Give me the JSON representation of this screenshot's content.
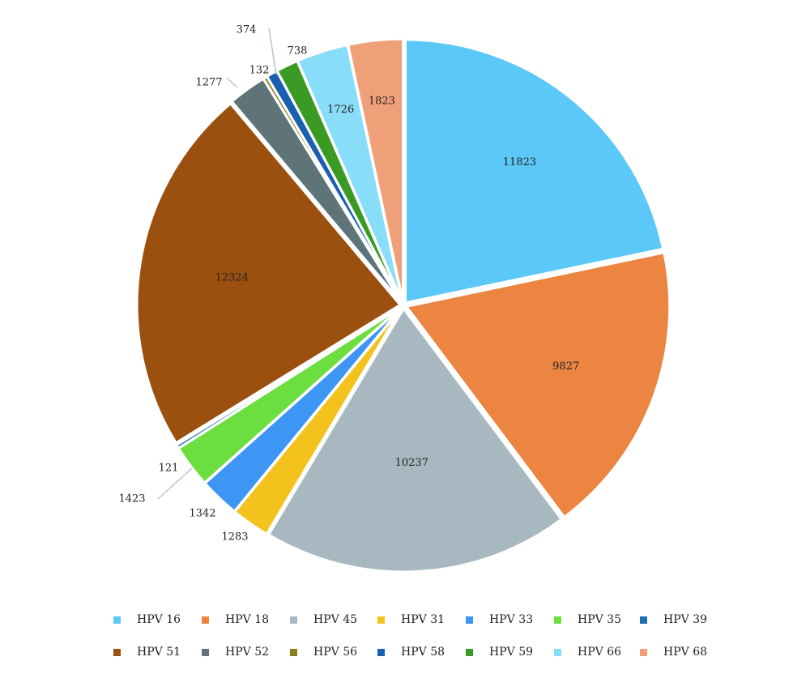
{
  "chart_data": {
    "type": "pie",
    "title": "",
    "slices": [
      {
        "name": "HPV 68",
        "value": 1823,
        "color": "#F0A078"
      },
      {
        "name": "HPV 16",
        "value": 11823,
        "color": "#5BC8F8"
      },
      {
        "name": "HPV 18",
        "value": 9827,
        "color": "#EC8442"
      },
      {
        "name": "HPV 45",
        "value": 10237,
        "color": "#A8B8C0"
      },
      {
        "name": "HPV 31",
        "value": 1283,
        "color": "#F3C21C"
      },
      {
        "name": "HPV 33",
        "value": 1342,
        "color": "#3D96F3"
      },
      {
        "name": "HPV 35",
        "value": 1423,
        "color": "#6CDE40"
      },
      {
        "name": "HPV 39",
        "value": 121,
        "color": "#1C70B0"
      },
      {
        "name": "HPV 51",
        "value": 12324,
        "color": "#9C5010"
      },
      {
        "name": "HPV 52",
        "value": 1277,
        "color": "#5E7478"
      },
      {
        "name": "HPV 56",
        "value": 132,
        "color": "#8C7A1C"
      },
      {
        "name": "HPV 58",
        "value": 374,
        "color": "#1A5FB0"
      },
      {
        "name": "HPV 59",
        "value": 738,
        "color": "#3A9A24"
      },
      {
        "name": "HPV 66",
        "value": 1726,
        "color": "#88DDF8"
      }
    ],
    "legend": {
      "placement": "bottom",
      "entries": [
        {
          "label": "HPV 16",
          "color": "#5BC8F8"
        },
        {
          "label": "HPV 18",
          "color": "#EC8442"
        },
        {
          "label": "HPV 45",
          "color": "#A8B8C0"
        },
        {
          "label": "HPV 31",
          "color": "#F3C21C"
        },
        {
          "label": "HPV 33",
          "color": "#3D96F3"
        },
        {
          "label": "HPV 35",
          "color": "#6CDE40"
        },
        {
          "label": "HPV 39",
          "color": "#1C70B0"
        },
        {
          "label": "HPV 51",
          "color": "#9C5010"
        },
        {
          "label": "HPV 52",
          "color": "#5E7478"
        },
        {
          "label": "HPV 56",
          "color": "#8C7A1C"
        },
        {
          "label": "HPV 58",
          "color": "#1A5FB0"
        },
        {
          "label": "HPV 59",
          "color": "#3A9A24"
        },
        {
          "label": "HPV 66",
          "color": "#88DDF8"
        },
        {
          "label": "HPV 68",
          "color": "#F0A078"
        }
      ]
    }
  }
}
